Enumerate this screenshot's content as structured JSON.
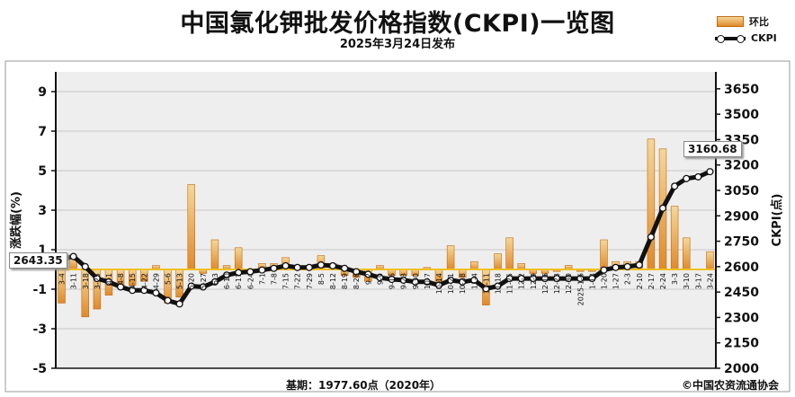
{
  "header": {
    "title": "中国氯化钾批发价格指数(CKPI)一览图",
    "subtitle": "2025年3月24日发布"
  },
  "legend": {
    "bar_label": "环比",
    "line_label": "CKPI"
  },
  "axes": {
    "left_label": "涨跌幅(%)",
    "right_label": "CKPI(点)"
  },
  "callouts": {
    "first_value": "2643.35",
    "last_value": "3160.68"
  },
  "footer": {
    "base": "基期：1977.60点（2020年）",
    "copyright": "©中国农资流通协会"
  },
  "colors": {
    "bar_top": "#f4d79a",
    "bar_bottom": "#e08a2a",
    "bar_border": "#c06a10",
    "line": "#111111",
    "zero_line": "#f0c020",
    "plot_bg": "#eeeeee"
  },
  "chart_data": {
    "type": "bar+line",
    "x": [
      "3-4",
      "3-11",
      "3-18",
      "3-25",
      "4-1",
      "4-8",
      "4-15",
      "4-22",
      "4-29",
      "5-6",
      "5-13",
      "5-20",
      "5-27",
      "6-3",
      "6-10",
      "6-17",
      "6-24",
      "7-1",
      "7-8",
      "7-15",
      "7-22",
      "7-29",
      "8-5",
      "8-12",
      "8-19",
      "8-26",
      "9-2",
      "9-9",
      "9-16",
      "9-23",
      "9-30",
      "10-7",
      "10-14",
      "10-21",
      "10-28",
      "11-4",
      "11-11",
      "11-18",
      "11-25",
      "12-2",
      "12-9",
      "12-16",
      "12-23",
      "12-30",
      "2025-1-6",
      "1-13",
      "1-20",
      "1-27",
      "2-3",
      "2-10",
      "2-17",
      "2-24",
      "3-3",
      "3-10",
      "3-17",
      "3-24"
    ],
    "series": [
      {
        "name": "环比",
        "axis": "left",
        "type": "bar",
        "values": [
          -1.7,
          0.6,
          -2.4,
          -2.0,
          -1.3,
          -0.9,
          -0.8,
          -0.6,
          0.2,
          -1.7,
          -1.4,
          4.3,
          -0.2,
          1.5,
          0.2,
          1.1,
          0.0,
          0.3,
          0.3,
          0.6,
          0.2,
          0.2,
          0.7,
          0.3,
          -0.3,
          -0.4,
          -0.6,
          0.2,
          -0.3,
          -0.3,
          -0.3,
          0.1,
          -0.6,
          1.2,
          -0.4,
          0.4,
          -1.8,
          0.8,
          1.6,
          0.3,
          -0.2,
          -0.2,
          -0.1,
          0.2,
          -0.1,
          -0.1,
          1.5,
          0.4,
          0.4,
          0.4,
          6.6,
          6.1,
          3.2,
          1.6,
          0.0,
          0.9
        ]
      },
      {
        "name": "CKPI",
        "axis": "right",
        "type": "line",
        "values": [
          2643.35,
          2660,
          2600,
          2530,
          2510,
          2480,
          2460,
          2460,
          2445,
          2400,
          2380,
          2485,
          2480,
          2510,
          2550,
          2565,
          2570,
          2580,
          2590,
          2605,
          2595,
          2595,
          2610,
          2605,
          2590,
          2570,
          2555,
          2535,
          2525,
          2520,
          2510,
          2510,
          2490,
          2520,
          2510,
          2520,
          2470,
          2485,
          2530,
          2530,
          2530,
          2530,
          2530,
          2530,
          2530,
          2530,
          2580,
          2595,
          2600,
          2610,
          2775,
          2945,
          3075,
          3120,
          3130,
          3160.68
        ]
      }
    ],
    "left_axis": {
      "ticks": [
        -5,
        -3,
        -1,
        1,
        3,
        5,
        7,
        9
      ],
      "range": [
        -5,
        10
      ]
    },
    "right_axis": {
      "ticks": [
        2000,
        2150,
        2300,
        2450,
        2600,
        2750,
        2900,
        3050,
        3200,
        3350,
        3500,
        3650
      ],
      "range": [
        2000,
        3750
      ]
    },
    "grid": true,
    "legend_position": "top-right"
  }
}
